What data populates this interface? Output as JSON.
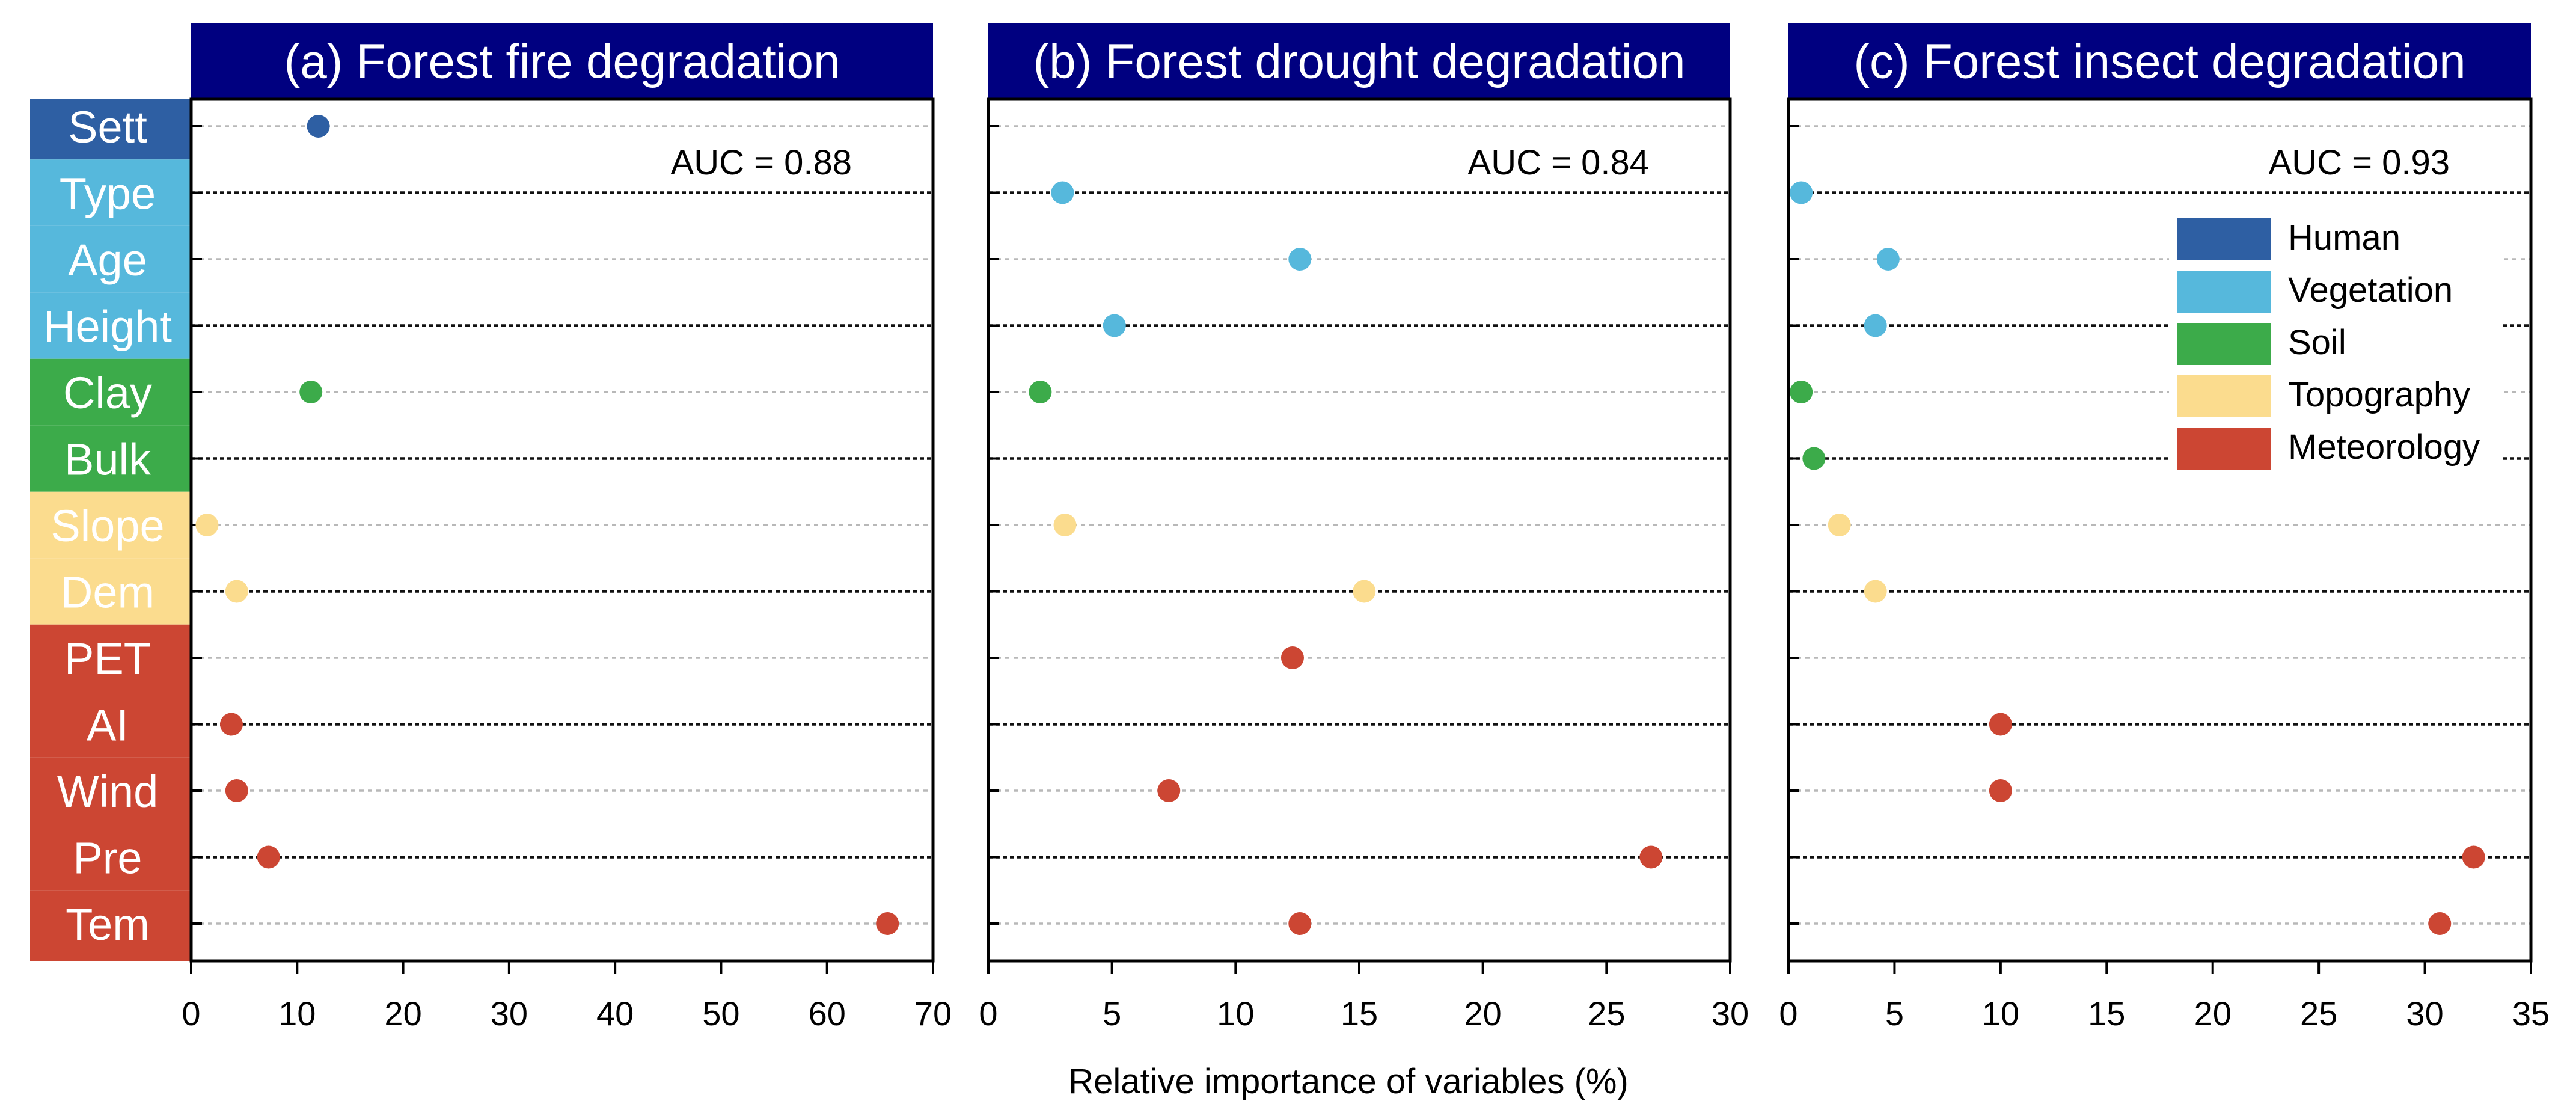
{
  "chart_data": {
    "type": "scatter",
    "xlabel": "Relative importance of variables (%)",
    "variables": [
      "Sett",
      "Type",
      "Age",
      "Height",
      "Clay",
      "Bulk",
      "Slope",
      "Dem",
      "PET",
      "AI",
      "Wind",
      "Pre",
      "Tem"
    ],
    "variable_groups": [
      "Human",
      "Vegetation",
      "Vegetation",
      "Vegetation",
      "Soil",
      "Soil",
      "Topography",
      "Topography",
      "Meteorology",
      "Meteorology",
      "Meteorology",
      "Meteorology",
      "Meteorology"
    ],
    "groups": [
      {
        "name": "Human",
        "color": "#2e5fa3"
      },
      {
        "name": "Vegetation",
        "color": "#56b8dc"
      },
      {
        "name": "Soil",
        "color": "#3cab4a"
      },
      {
        "name": "Topography",
        "color": "#fbdc8e"
      },
      {
        "name": "Meteorology",
        "color": "#cc4633"
      }
    ],
    "legend_position": "upper-right of panel (c)",
    "title_bar_color": "#000080",
    "panels": [
      {
        "title": "(a) Forest fire degradation",
        "auc": "AUC = 0.88",
        "xlim": [
          0,
          70
        ],
        "xticks": [
          "0",
          "10",
          "20",
          "30",
          "40",
          "50",
          "60",
          "70"
        ],
        "values": [
          12.0,
          null,
          null,
          null,
          11.3,
          null,
          1.5,
          4.3,
          null,
          3.8,
          4.3,
          7.3,
          65.7
        ]
      },
      {
        "title": "(b) Forest drought degradation",
        "auc": "AUC = 0.84",
        "xlim": [
          0,
          30
        ],
        "xticks": [
          "0",
          "5",
          "10",
          "15",
          "20",
          "25",
          "30"
        ],
        "values": [
          null,
          3.0,
          12.6,
          5.1,
          2.1,
          null,
          3.1,
          15.2,
          12.3,
          null,
          7.3,
          26.8,
          12.6
        ]
      },
      {
        "title": "(c) Forest insect degradation",
        "auc": "AUC = 0.93",
        "xlim": [
          0,
          35
        ],
        "xticks": [
          "0",
          "5",
          "10",
          "15",
          "20",
          "25",
          "30",
          "35"
        ],
        "values": [
          null,
          0.6,
          4.7,
          4.1,
          0.6,
          1.2,
          2.4,
          4.1,
          null,
          10.0,
          10.0,
          32.3,
          30.7
        ]
      }
    ]
  }
}
